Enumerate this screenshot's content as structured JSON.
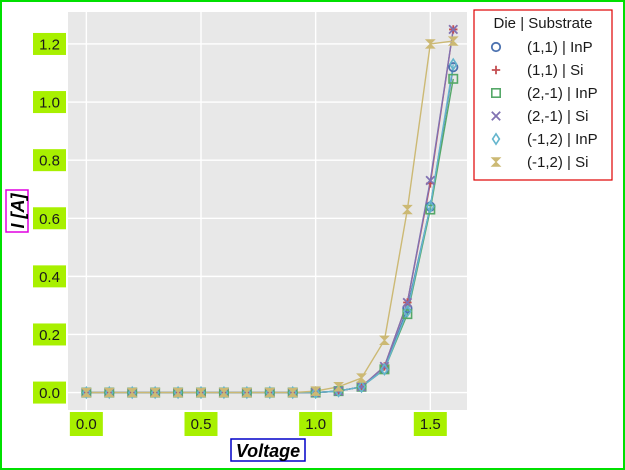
{
  "chart_data": {
    "type": "line",
    "xlabel": "Voltage",
    "ylabel": "I [A]",
    "xlim": [
      -0.08,
      1.66
    ],
    "ylim": [
      -0.06,
      1.31
    ],
    "xticks": [
      0.0,
      0.5,
      1.0,
      1.5
    ],
    "xtick_labels": [
      "0.0",
      "0.5",
      "1.0",
      "1.5"
    ],
    "yticks": [
      0.0,
      0.2,
      0.4,
      0.6,
      0.8,
      1.0,
      1.2
    ],
    "ytick_labels": [
      "0.0",
      "0.2",
      "0.4",
      "0.6",
      "0.8",
      "1.0",
      "1.2"
    ],
    "grid": true,
    "legend": {
      "title": "Die | Substrate",
      "placement": "outside-right-top"
    },
    "x": [
      0.0,
      0.1,
      0.2,
      0.3,
      0.4,
      0.5,
      0.6,
      0.7,
      0.8,
      0.9,
      1.0,
      1.1,
      1.2,
      1.3,
      1.4,
      1.5,
      1.6
    ],
    "series": [
      {
        "name": "(1,1) | InP",
        "marker": "circle",
        "color": "#4c72b0",
        "values": [
          0,
          0,
          0,
          0,
          0,
          0,
          0,
          0,
          0,
          0,
          0,
          0.005,
          0.02,
          0.08,
          0.29,
          0.64,
          1.12
        ]
      },
      {
        "name": "(1,1) | Si",
        "marker": "plus",
        "color": "#c44e52",
        "values": [
          0,
          0,
          0,
          0,
          0,
          0,
          0,
          0,
          0,
          0,
          0,
          0.005,
          0.02,
          0.09,
          0.31,
          0.72,
          1.25
        ]
      },
      {
        "name": "(2,-1) | InP",
        "marker": "square",
        "color": "#55a868",
        "values": [
          0,
          0,
          0,
          0,
          0,
          0,
          0,
          0,
          0,
          0,
          0,
          0.005,
          0.02,
          0.08,
          0.27,
          0.63,
          1.08
        ]
      },
      {
        "name": "(2,-1) | Si",
        "marker": "x",
        "color": "#8172b2",
        "values": [
          0,
          0,
          0,
          0,
          0,
          0,
          0,
          0,
          0,
          0,
          0,
          0.005,
          0.02,
          0.09,
          0.31,
          0.73,
          1.25
        ]
      },
      {
        "name": "(-1,2) | InP",
        "marker": "diamond",
        "color": "#64b5cd",
        "values": [
          0,
          0,
          0,
          0,
          0,
          0,
          0,
          0,
          0,
          0,
          0,
          0.005,
          0.02,
          0.08,
          0.28,
          0.64,
          1.13
        ]
      },
      {
        "name": "(-1,2) | Si",
        "marker": "hourglass",
        "color": "#ccb974",
        "values": [
          0,
          0,
          0,
          0,
          0,
          0,
          0,
          0,
          0,
          0,
          0.005,
          0.02,
          0.05,
          0.18,
          0.63,
          1.2,
          1.21
        ]
      }
    ]
  }
}
